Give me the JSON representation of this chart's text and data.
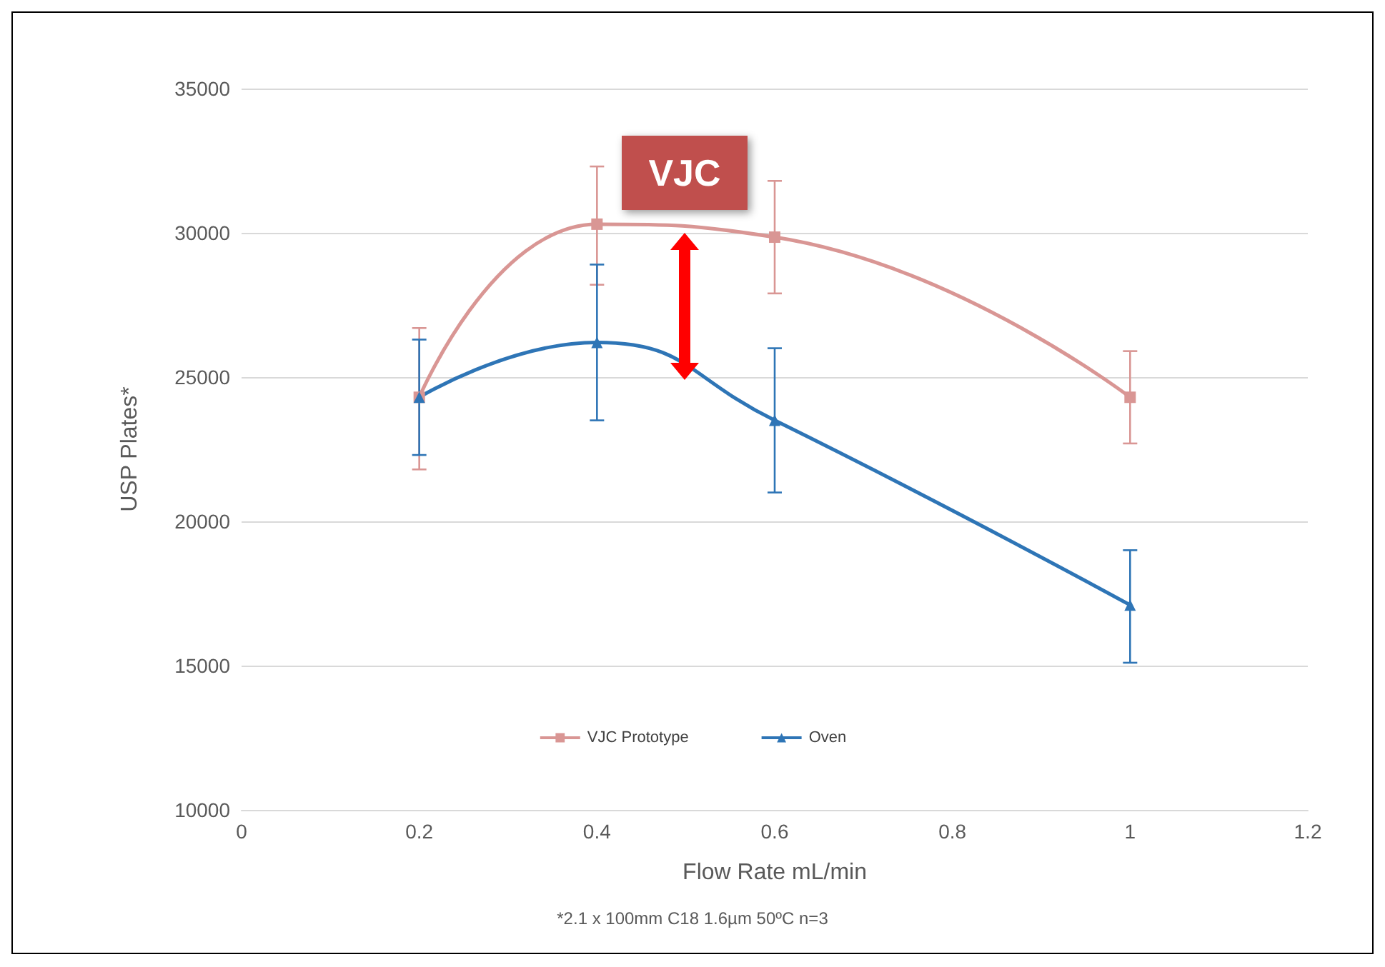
{
  "chart_data": {
    "type": "line",
    "xlabel": "Flow Rate mL/min",
    "ylabel": "USP Plates*",
    "x": [
      0.2,
      0.4,
      0.6,
      1
    ],
    "series": [
      {
        "name": "VJC Prototype",
        "color": "#d99694",
        "marker": "square",
        "values": [
          24300,
          30300,
          29850,
          24300
        ],
        "errors": [
          [
            21800,
            26700
          ],
          [
            28200,
            32300
          ],
          [
            27900,
            31800
          ],
          [
            22700,
            25900
          ]
        ]
      },
      {
        "name": "Oven",
        "color": "#2e75b6",
        "marker": "triangle",
        "values": [
          24300,
          26200,
          23500,
          17100
        ],
        "errors": [
          [
            22300,
            26300
          ],
          [
            23500,
            28900
          ],
          [
            21000,
            26000
          ],
          [
            15100,
            19000
          ]
        ]
      }
    ],
    "xlim": [
      0,
      1.2
    ],
    "xticks": [
      0,
      0.2,
      0.4,
      0.6,
      0.8,
      1,
      1.2
    ],
    "ylim": [
      10000,
      35000
    ],
    "yticks": [
      10000,
      15000,
      20000,
      25000,
      30000,
      35000
    ],
    "grid": "y",
    "legend": "bottom",
    "annotations": [
      "VJC",
      "*2.1 x 100mm C18 1.6µm 50ºC n=3"
    ]
  }
}
